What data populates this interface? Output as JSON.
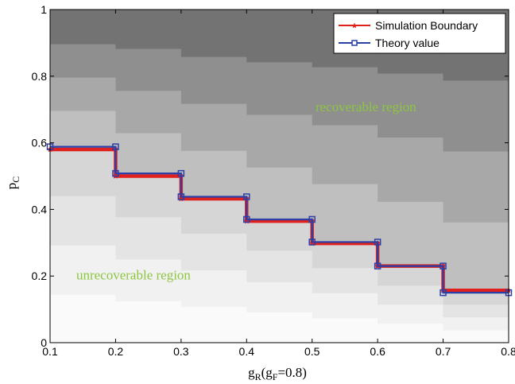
{
  "chart_data": {
    "type": "line",
    "xlabel": {
      "main": "g",
      "sub": "R",
      "paren_open": "(g",
      "paren_sub": "F",
      "paren_close": "=0.8)"
    },
    "ylabel": {
      "main": "p",
      "sub": "C"
    },
    "xlim": [
      0.1,
      0.8
    ],
    "ylim": [
      0,
      1
    ],
    "x_ticks": [
      "0.1",
      "0.2",
      "0.3",
      "0.4",
      "0.5",
      "0.6",
      "0.7",
      "0.8"
    ],
    "y_ticks": [
      "0",
      "0.2",
      "0.4",
      "0.6",
      "0.8",
      "1"
    ],
    "legend_position": "top-right",
    "series": [
      {
        "name": "Simulation Boundary",
        "color": "#e0201c",
        "marker": "star",
        "steps": [
          {
            "x0": 0.1,
            "x1": 0.2,
            "y": 0.58
          },
          {
            "x0": 0.2,
            "x1": 0.3,
            "y": 0.5
          },
          {
            "x0": 0.3,
            "x1": 0.4,
            "y": 0.432
          },
          {
            "x0": 0.4,
            "x1": 0.5,
            "y": 0.365
          },
          {
            "x0": 0.5,
            "x1": 0.6,
            "y": 0.298
          },
          {
            "x0": 0.6,
            "x1": 0.7,
            "y": 0.23
          },
          {
            "x0": 0.7,
            "x1": 0.8,
            "y": 0.157
          }
        ]
      },
      {
        "name": "Theory value",
        "color": "#2b3fa8",
        "marker": "square",
        "steps": [
          {
            "x0": 0.1,
            "x1": 0.2,
            "y": 0.588
          },
          {
            "x0": 0.2,
            "x1": 0.3,
            "y": 0.508
          },
          {
            "x0": 0.3,
            "x1": 0.4,
            "y": 0.438
          },
          {
            "x0": 0.4,
            "x1": 0.5,
            "y": 0.37
          },
          {
            "x0": 0.5,
            "x1": 0.6,
            "y": 0.302
          },
          {
            "x0": 0.6,
            "x1": 0.7,
            "y": 0.23
          },
          {
            "x0": 0.7,
            "x1": 0.8,
            "y": 0.15
          }
        ]
      }
    ],
    "background_bands": [
      {
        "x0": 0.1,
        "x1": 0.2,
        "bounds": [
          0.145,
          0.293,
          0.441,
          0.589,
          0.697,
          0.797,
          0.897
        ]
      },
      {
        "x0": 0.2,
        "x1": 0.3,
        "bounds": [
          0.125,
          0.251,
          0.378,
          0.505,
          0.63,
          0.757,
          0.883
        ]
      },
      {
        "x0": 0.3,
        "x1": 0.4,
        "bounds": [
          0.108,
          0.218,
          0.328,
          0.437,
          0.577,
          0.718,
          0.859
        ]
      },
      {
        "x0": 0.4,
        "x1": 0.5,
        "bounds": [
          0.092,
          0.183,
          0.277,
          0.369,
          0.527,
          0.685,
          0.843
        ]
      },
      {
        "x0": 0.5,
        "x1": 0.6,
        "bounds": [
          0.074,
          0.15,
          0.225,
          0.3,
          0.477,
          0.654,
          0.828
        ]
      },
      {
        "x0": 0.6,
        "x1": 0.7,
        "bounds": [
          0.058,
          0.115,
          0.172,
          0.23,
          0.424,
          0.617,
          0.809
        ]
      },
      {
        "x0": 0.7,
        "x1": 0.8,
        "bounds": [
          0.038,
          0.077,
          0.115,
          0.153,
          0.362,
          0.575,
          0.788
        ]
      }
    ],
    "band_colors": [
      "#fafafa",
      "#f1f1f1",
      "#e4e4e4",
      "#d6d6d6",
      "#bfbfbf",
      "#a8a8a8",
      "#8f8f8f",
      "#737373"
    ],
    "annotations": [
      {
        "text": "recoverable region",
        "x": 0.505,
        "y": 0.695,
        "color": "#8dc63f"
      },
      {
        "text": "unrecoverable region",
        "x": 0.14,
        "y": 0.19,
        "color": "#8dc63f"
      }
    ]
  }
}
